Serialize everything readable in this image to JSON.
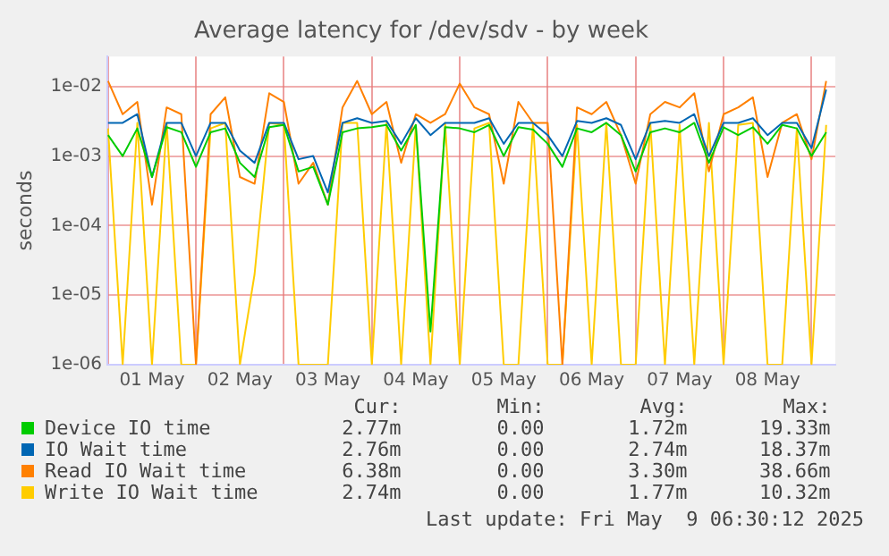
{
  "chart_data": {
    "type": "line",
    "title": "Average latency for /dev/sdv - by week",
    "ylabel": "seconds",
    "log": "y",
    "grid": true,
    "legend": "bottom",
    "marker": "none",
    "line_style": "solid",
    "xlim": [
      "2025-04-30T23:50",
      "2025-05-09T06:30"
    ],
    "xticks": [
      {
        "value": "2025-05-01T00:00",
        "label": null
      },
      {
        "value": "2025-05-01T12:00",
        "label": "01 May"
      },
      {
        "value": "2025-05-02T00:00",
        "label": null
      },
      {
        "value": "2025-05-02T12:00",
        "label": "02 May"
      },
      {
        "value": "2025-05-03T00:00",
        "label": null
      },
      {
        "value": "2025-05-03T12:00",
        "label": "03 May"
      },
      {
        "value": "2025-05-04T00:00",
        "label": null
      },
      {
        "value": "2025-05-04T12:00",
        "label": "04 May"
      },
      {
        "value": "2025-05-05T00:00",
        "label": null
      },
      {
        "value": "2025-05-05T12:00",
        "label": "05 May"
      },
      {
        "value": "2025-05-06T00:00",
        "label": null
      },
      {
        "value": "2025-05-06T12:00",
        "label": "06 May"
      },
      {
        "value": "2025-05-07T00:00",
        "label": null
      },
      {
        "value": "2025-05-07T12:00",
        "label": "07 May"
      },
      {
        "value": "2025-05-08T00:00",
        "label": null
      },
      {
        "value": "2025-05-08T12:00",
        "label": "08 May"
      },
      {
        "value": "2025-05-09T00:00",
        "label": null
      }
    ],
    "ylim": [
      1e-06,
      0.027
    ],
    "yticks": [
      {
        "value": 1e-06,
        "label": "1e-06"
      },
      {
        "value": 1e-05,
        "label": "1e-05"
      },
      {
        "value": 0.0001,
        "label": "1e-04"
      },
      {
        "value": 0.001,
        "label": "1e-03"
      },
      {
        "value": 0.01,
        "label": "1e-02"
      }
    ],
    "x": [
      "2025-05-01T00:00",
      "2025-05-01T04:00",
      "2025-05-01T08:00",
      "2025-05-01T12:00",
      "2025-05-01T16:00",
      "2025-05-01T20:00",
      "2025-05-02T00:00",
      "2025-05-02T04:00",
      "2025-05-02T08:00",
      "2025-05-02T12:00",
      "2025-05-02T16:00",
      "2025-05-02T20:00",
      "2025-05-03T00:00",
      "2025-05-03T04:00",
      "2025-05-03T08:00",
      "2025-05-03T12:00",
      "2025-05-03T16:00",
      "2025-05-03T20:00",
      "2025-05-04T00:00",
      "2025-05-04T04:00",
      "2025-05-04T08:00",
      "2025-05-04T12:00",
      "2025-05-04T16:00",
      "2025-05-04T20:00",
      "2025-05-05T00:00",
      "2025-05-05T04:00",
      "2025-05-05T08:00",
      "2025-05-05T12:00",
      "2025-05-05T16:00",
      "2025-05-05T20:00",
      "2025-05-06T00:00",
      "2025-05-06T04:00",
      "2025-05-06T08:00",
      "2025-05-06T12:00",
      "2025-05-06T16:00",
      "2025-05-06T20:00",
      "2025-05-07T00:00",
      "2025-05-07T04:00",
      "2025-05-07T08:00",
      "2025-05-07T12:00",
      "2025-05-07T16:00",
      "2025-05-07T20:00",
      "2025-05-08T00:00",
      "2025-05-08T04:00",
      "2025-05-08T08:00",
      "2025-05-08T12:00",
      "2025-05-08T16:00",
      "2025-05-08T20:00",
      "2025-05-09T00:00",
      "2025-05-09T04:00"
    ],
    "series": [
      {
        "name": "Device IO time",
        "color": "#00cc00",
        "values": [
          0.002,
          0.001,
          0.0025,
          0.0005,
          0.0026,
          0.0022,
          0.0007,
          0.0022,
          0.0025,
          0.0008,
          0.0005,
          0.0026,
          0.0028,
          0.0006,
          0.0007,
          0.0002,
          0.0022,
          0.0025,
          0.0026,
          0.0028,
          0.0012,
          0.0028,
          3e-06,
          0.0026,
          0.0025,
          0.0022,
          0.0028,
          0.001,
          0.0026,
          0.0024,
          0.0015,
          0.0007,
          0.0025,
          0.0022,
          0.003,
          0.002,
          0.0006,
          0.0022,
          0.0025,
          0.0022,
          0.003,
          0.0008,
          0.0026,
          0.002,
          0.0026,
          0.0015,
          0.0028,
          0.0025,
          0.001,
          0.0022
        ]
      },
      {
        "name": "IO Wait time",
        "color": "#0066b3",
        "values": [
          0.003,
          0.003,
          0.004,
          0.0005,
          0.003,
          0.003,
          0.001,
          0.003,
          0.003,
          0.0012,
          0.0008,
          0.003,
          0.003,
          0.0009,
          0.001,
          0.0003,
          0.003,
          0.0035,
          0.003,
          0.0032,
          0.0015,
          0.0035,
          0.002,
          0.003,
          0.003,
          0.003,
          0.0035,
          0.0015,
          0.003,
          0.003,
          0.002,
          0.001,
          0.0032,
          0.003,
          0.0035,
          0.0028,
          0.0009,
          0.003,
          0.0032,
          0.003,
          0.004,
          0.001,
          0.003,
          0.003,
          0.0035,
          0.002,
          0.003,
          0.003,
          0.0013,
          0.009
        ]
      },
      {
        "name": "Read IO Wait time",
        "color": "#ff8000",
        "values": [
          0.012,
          0.004,
          0.006,
          0.0002,
          0.005,
          0.004,
          1e-06,
          0.004,
          0.007,
          0.0005,
          0.0004,
          0.008,
          0.006,
          0.0004,
          0.0008,
          0.0002,
          0.005,
          0.012,
          0.004,
          0.006,
          0.0008,
          0.004,
          0.003,
          0.004,
          0.011,
          0.005,
          0.004,
          0.0004,
          0.006,
          0.003,
          0.003,
          1e-06,
          0.005,
          0.004,
          0.006,
          0.002,
          0.0004,
          0.004,
          0.006,
          0.005,
          0.008,
          0.0006,
          0.004,
          0.005,
          0.007,
          0.0005,
          0.003,
          0.004,
          0.0009,
          0.012
        ]
      },
      {
        "name": "Write IO Wait time",
        "color": "#ffcc00",
        "values": [
          0.0025,
          1e-06,
          0.003,
          1e-06,
          0.003,
          1e-06,
          1e-06,
          0.0025,
          0.003,
          1e-06,
          2e-05,
          0.003,
          0.0028,
          1e-06,
          1e-06,
          1e-06,
          0.003,
          0.003,
          1e-06,
          0.003,
          1e-06,
          0.0028,
          1e-06,
          0.003,
          1e-06,
          0.0025,
          0.003,
          1e-06,
          1e-06,
          0.003,
          1e-06,
          1e-06,
          0.0028,
          1e-06,
          0.003,
          1e-06,
          1e-06,
          0.003,
          1e-06,
          0.0028,
          1e-06,
          0.003,
          1e-06,
          0.0028,
          0.003,
          1e-06,
          1e-06,
          0.0025,
          1e-06,
          0.0028
        ]
      }
    ],
    "annotations": [
      "Cur:",
      "Min:",
      "Avg:",
      "Max:",
      "2.77m",
      "0.00",
      "1.72m",
      "19.33m",
      "2.76m",
      "0.00",
      "2.74m",
      "18.37m",
      "6.38m",
      "0.00",
      "3.30m",
      "38.66m",
      "2.74m",
      "0.00",
      "1.77m",
      "10.32m",
      "Last update: Fri May  9 06:30:12 2025"
    ]
  }
}
